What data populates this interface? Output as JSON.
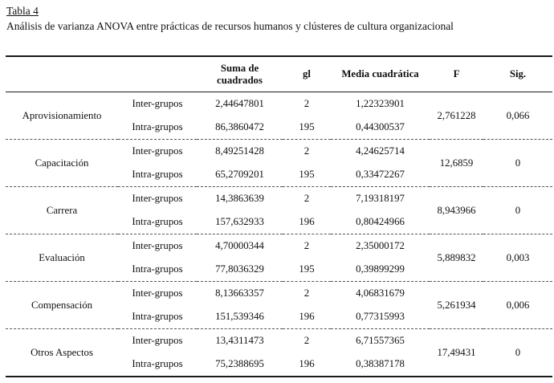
{
  "caption": {
    "table_number": "Tabla 4",
    "title": "Análisis de varianza ANOVA entre prácticas de recursos humanos y clústeres de cultura organizacional"
  },
  "table": {
    "headers": {
      "suma": "Suma de cuadrados",
      "gl": "gl",
      "media": "Media cuadrática",
      "f": "F",
      "sig": "Sig."
    },
    "row_labels": {
      "inter": "Inter-grupos",
      "intra": "Intra-grupos"
    },
    "groups": [
      {
        "name": "Aprovisionamiento",
        "inter": {
          "suma": "2,44647801",
          "gl": "2",
          "media": "1,22323901"
        },
        "intra": {
          "suma": "86,3860472",
          "gl": "195",
          "media": "0,44300537"
        },
        "f": "2,761228",
        "sig": "0,066"
      },
      {
        "name": "Capacitación",
        "inter": {
          "suma": "8,49251428",
          "gl": "2",
          "media": "4,24625714"
        },
        "intra": {
          "suma": "65,2709201",
          "gl": "195",
          "media": "0,33472267"
        },
        "f": "12,6859",
        "sig": "0"
      },
      {
        "name": "Carrera",
        "inter": {
          "suma": "14,3863639",
          "gl": "2",
          "media": "7,19318197"
        },
        "intra": {
          "suma": "157,632933",
          "gl": "196",
          "media": "0,80424966"
        },
        "f": "8,943966",
        "sig": "0"
      },
      {
        "name": "Evaluación",
        "inter": {
          "suma": "4,70000344",
          "gl": "2",
          "media": "2,35000172"
        },
        "intra": {
          "suma": "77,8036329",
          "gl": "195",
          "media": "0,39899299"
        },
        "f": "5,889832",
        "sig": "0,003"
      },
      {
        "name": "Compensación",
        "inter": {
          "suma": "8,13663357",
          "gl": "2",
          "media": "4,06831679"
        },
        "intra": {
          "suma": "151,539346",
          "gl": "196",
          "media": "0,77315993"
        },
        "f": "5,261934",
        "sig": "0,006"
      },
      {
        "name": "Otros Aspectos",
        "inter": {
          "suma": "13,4311473",
          "gl": "2",
          "media": "6,71557365"
        },
        "intra": {
          "suma": "75,2388695",
          "gl": "196",
          "media": "0,38387178"
        },
        "f": "17,49431",
        "sig": "0"
      }
    ]
  }
}
